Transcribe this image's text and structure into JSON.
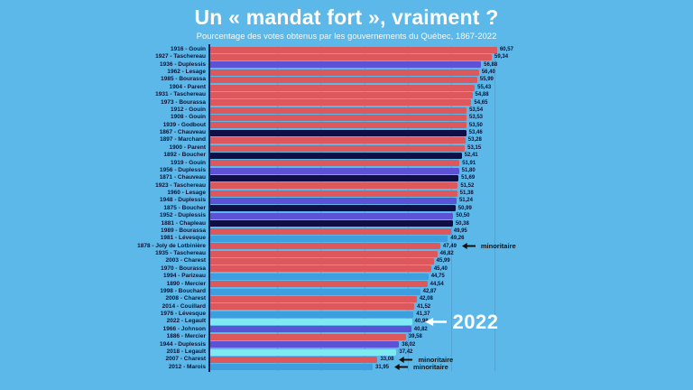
{
  "header": {
    "title": "Un « mandat fort », vraiment ?",
    "subtitle": "Pourcentage des votes obtenus par les gouvernements du Québec, 1867-2022"
  },
  "colors": {
    "background": "#5cb8e8",
    "red": "#dd585c",
    "navy": "#0f0f45",
    "purple": "#5b52d6",
    "blue": "#3d9ee0",
    "cyan": "#7fe9f2",
    "axis": "#1c1c50",
    "text_dark": "#0e1236",
    "annotation_dark": "#111111",
    "annotation_light": "#ffffff"
  },
  "chart_data": {
    "type": "bar",
    "orientation": "horizontal",
    "title": "Un « mandat fort », vraiment ?",
    "subtitle": "Pourcentage des votes obtenus par les gouvernements du Québec, 1867-2022",
    "value_unit": "% des votes",
    "xlim": [
      0,
      62
    ],
    "grid": "vertical, every 10",
    "series": [
      {
        "label": "1916 - Gouin",
        "value": 60.57,
        "display": "60,57",
        "color": "red",
        "annotation": null
      },
      {
        "label": "1927 - Taschereau",
        "value": 59.34,
        "display": "59,34",
        "color": "red",
        "annotation": null
      },
      {
        "label": "1936 - Duplessis",
        "value": 56.88,
        "display": "56,88",
        "color": "purple",
        "annotation": null
      },
      {
        "label": "1962 - Lesage",
        "value": 56.4,
        "display": "56,40",
        "color": "red",
        "annotation": null
      },
      {
        "label": "1985 - Bourassa",
        "value": 55.99,
        "display": "55,99",
        "color": "red",
        "annotation": null
      },
      {
        "label": "1904 - Parent",
        "value": 55.43,
        "display": "55,43",
        "color": "red",
        "annotation": null
      },
      {
        "label": "1931 - Taschereau",
        "value": 54.88,
        "display": "54,88",
        "color": "red",
        "annotation": null
      },
      {
        "label": "1973 - Bourassa",
        "value": 54.65,
        "display": "54,65",
        "color": "red",
        "annotation": null
      },
      {
        "label": "1912 - Gouin",
        "value": 53.54,
        "display": "53,54",
        "color": "red",
        "annotation": null
      },
      {
        "label": "1908 - Gouin",
        "value": 53.53,
        "display": "53,53",
        "color": "red",
        "annotation": null
      },
      {
        "label": "1939 - Godbout",
        "value": 53.5,
        "display": "53,50",
        "color": "red",
        "annotation": null
      },
      {
        "label": "1867 - Chauveau",
        "value": 53.46,
        "display": "53,46",
        "color": "navy",
        "annotation": null
      },
      {
        "label": "1897 - Marchand",
        "value": 53.28,
        "display": "53,28",
        "color": "red",
        "annotation": null
      },
      {
        "label": "1900 - Parent",
        "value": 53.15,
        "display": "53,15",
        "color": "red",
        "annotation": null
      },
      {
        "label": "1892 - Boucher",
        "value": 52.41,
        "display": "52,41",
        "color": "navy",
        "annotation": null
      },
      {
        "label": "1919 - Gouin",
        "value": 51.91,
        "display": "51,91",
        "color": "red",
        "annotation": null
      },
      {
        "label": "1956 - Duplessis",
        "value": 51.8,
        "display": "51,80",
        "color": "purple",
        "annotation": null
      },
      {
        "label": "1871 - Chauveau",
        "value": 51.69,
        "display": "51,69",
        "color": "navy",
        "annotation": null
      },
      {
        "label": "1923 - Taschereau",
        "value": 51.52,
        "display": "51,52",
        "color": "red",
        "annotation": null
      },
      {
        "label": "1960 - Lesage",
        "value": 51.38,
        "display": "51,38",
        "color": "red",
        "annotation": null
      },
      {
        "label": "1948 - Duplessis",
        "value": 51.24,
        "display": "51,24",
        "color": "purple",
        "annotation": null
      },
      {
        "label": "1875 - Boucher",
        "value": 50.99,
        "display": "50,99",
        "color": "navy",
        "annotation": null
      },
      {
        "label": "1952 - Duplessis",
        "value": 50.5,
        "display": "50,50",
        "color": "purple",
        "annotation": null
      },
      {
        "label": "1881 - Chapleau",
        "value": 50.38,
        "display": "50,38",
        "color": "navy",
        "annotation": null
      },
      {
        "label": "1989 - Bourassa",
        "value": 49.95,
        "display": "49,95",
        "color": "red",
        "annotation": null
      },
      {
        "label": "1981 - Lévesque",
        "value": 49.26,
        "display": "49,26",
        "color": "blue",
        "annotation": null
      },
      {
        "label": "1878 - Joly de Lotbinière",
        "value": 47.49,
        "display": "47,49",
        "color": "red",
        "annotation": {
          "text": "minoritaire",
          "style": "small"
        }
      },
      {
        "label": "1935 - Taschereau",
        "value": 46.82,
        "display": "46,82",
        "color": "red",
        "annotation": null
      },
      {
        "label": "2003 - Charest",
        "value": 45.99,
        "display": "45,99",
        "color": "red",
        "annotation": null
      },
      {
        "label": "1970 - Bourassa",
        "value": 45.4,
        "display": "45,40",
        "color": "red",
        "annotation": null
      },
      {
        "label": "1994 - Parizeau",
        "value": 44.75,
        "display": "44,75",
        "color": "blue",
        "annotation": null
      },
      {
        "label": "1890 - Mercier",
        "value": 44.54,
        "display": "44,54",
        "color": "red",
        "annotation": null
      },
      {
        "label": "1998 - Bouchard",
        "value": 42.87,
        "display": "42,87",
        "color": "blue",
        "annotation": null
      },
      {
        "label": "2008 - Charest",
        "value": 42.08,
        "display": "42,08",
        "color": "red",
        "annotation": null
      },
      {
        "label": "2014 - Couillard",
        "value": 41.52,
        "display": "41,52",
        "color": "red",
        "annotation": null
      },
      {
        "label": "1976 - Lévesque",
        "value": 41.37,
        "display": "41,37",
        "color": "blue",
        "annotation": null
      },
      {
        "label": "2022 - Legault",
        "value": 40.98,
        "display": "40,98",
        "color": "cyan",
        "annotation": {
          "text": "2022",
          "style": "large"
        }
      },
      {
        "label": "1966 - Johnson",
        "value": 40.82,
        "display": "40,82",
        "color": "purple",
        "annotation": null
      },
      {
        "label": "1886 - Mercier",
        "value": 39.58,
        "display": "39,58",
        "color": "red",
        "annotation": null
      },
      {
        "label": "1944 - Duplessis",
        "value": 38.02,
        "display": "38,02",
        "color": "purple",
        "annotation": null
      },
      {
        "label": "2018 - Legault",
        "value": 37.42,
        "display": "37,42",
        "color": "cyan",
        "annotation": null
      },
      {
        "label": "2007 - Charest",
        "value": 33.08,
        "display": "33,08",
        "color": "red",
        "annotation": {
          "text": "minoritaire",
          "style": "small"
        }
      },
      {
        "label": "2012 - Marois",
        "value": 31.95,
        "display": "31,95",
        "color": "blue",
        "annotation": {
          "text": "minoritaire",
          "style": "small"
        }
      }
    ]
  }
}
